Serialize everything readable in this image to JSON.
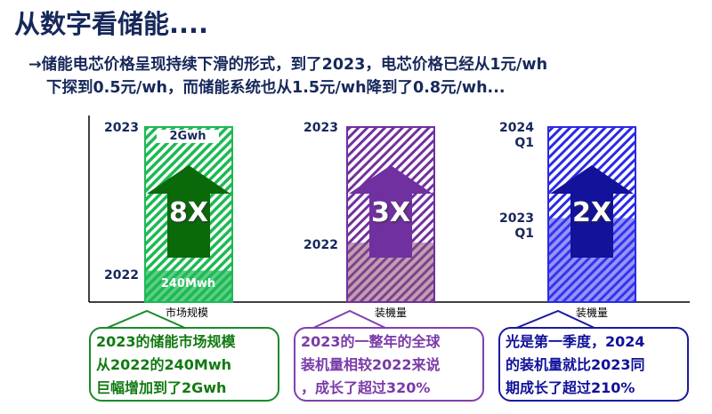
{
  "title": "从数字看储能....",
  "subtitle": {
    "line1": "→储能电芯价格呈现持续下滑的形式，到了2023，电芯价格已经从1元/wh",
    "line2": "下探到0.5元/wh，而储能系统也从1.5元/wh降到了0.8元/wh..."
  },
  "colors": {
    "green": "#1db954",
    "purple": "#7030a0",
    "blue": "#2a2ae6",
    "text": "#17285a"
  },
  "bars": [
    {
      "category": "市场规模",
      "top_label": "2023",
      "bottom_label": "2022",
      "top_value": "2Gwh",
      "bottom_value": "240Mwh",
      "multiplier": "8X",
      "base_fraction": 0.18,
      "callout": [
        "2023的储能市场规模",
        "从2022的240Mwh",
        "巨幅增加到了2Gwh"
      ]
    },
    {
      "category": "装機量",
      "top_label": "2023",
      "bottom_label": "2022",
      "multiplier": "3X",
      "base_fraction": 0.34,
      "callout": [
        "2023的一整年的全球",
        "装机量相较2022来说",
        "，成长了超过320%"
      ]
    },
    {
      "category": "装機量",
      "top_label_1": "2024",
      "top_label_2": "Q1",
      "bottom_label_1": "2023",
      "bottom_label_2": "Q1",
      "multiplier": "2X",
      "base_fraction": 0.48,
      "callout": [
        "光是第一季度，2024",
        "的装机量就比2023同",
        "期成长了超过210%"
      ]
    }
  ]
}
